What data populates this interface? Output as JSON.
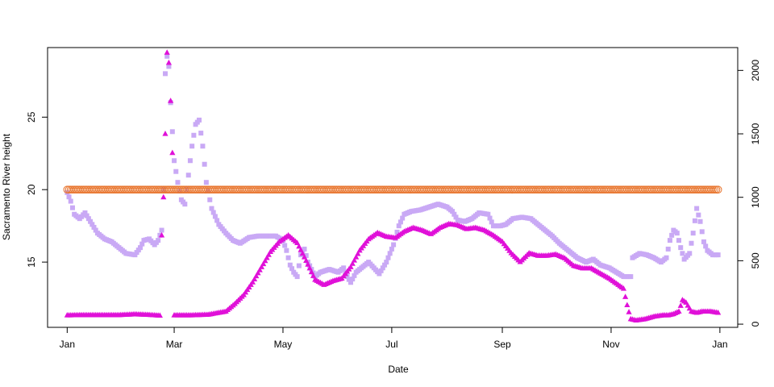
{
  "chart_data": {
    "type": "scatter",
    "xlabel": "Date",
    "ylabel": "Sacramento River height",
    "xlim": [
      "2016-01-01",
      "2016-12-31"
    ],
    "x_ticks": [
      {
        "date": "2016-01-01",
        "label": "Jan"
      },
      {
        "date": "2016-03-01",
        "label": "Mar"
      },
      {
        "date": "2016-05-01",
        "label": "May"
      },
      {
        "date": "2016-07-01",
        "label": "Jul"
      },
      {
        "date": "2016-09-01",
        "label": "Sep"
      },
      {
        "date": "2016-11-01",
        "label": "Nov"
      },
      {
        "date": "2017-01-01",
        "label": "Jan"
      }
    ],
    "ylim_left": [
      10.5,
      29.8
    ],
    "yticks_left": [
      15,
      20,
      25
    ],
    "ylim_right": [
      -25,
      2180
    ],
    "yticks_right": [
      0,
      500,
      1000,
      1500,
      2000
    ],
    "grid": false,
    "legend": "none",
    "series": [
      {
        "marker": "square",
        "color": "#c9a9f5",
        "axis": "left",
        "points": [
          [
            "2016-01-01",
            19.8
          ],
          [
            "2016-01-03",
            19.2
          ],
          [
            "2016-01-05",
            18.3
          ],
          [
            "2016-01-08",
            18.0
          ],
          [
            "2016-01-11",
            18.4
          ],
          [
            "2016-01-14",
            17.8
          ],
          [
            "2016-01-18",
            17.0
          ],
          [
            "2016-01-22",
            16.6
          ],
          [
            "2016-01-26",
            16.4
          ],
          [
            "2016-01-30",
            16.0
          ],
          [
            "2016-02-03",
            15.6
          ],
          [
            "2016-02-08",
            15.5
          ],
          [
            "2016-02-11",
            16.0
          ],
          [
            "2016-02-13",
            16.5
          ],
          [
            "2016-02-16",
            16.6
          ],
          [
            "2016-02-19",
            16.2
          ],
          [
            "2016-02-21",
            16.5
          ],
          [
            "2016-02-23",
            17.2
          ],
          [
            "2016-02-24",
            20.0
          ],
          [
            "2016-02-25",
            28.0
          ],
          [
            "2016-02-26",
            29.2
          ],
          [
            "2016-02-27",
            28.5
          ],
          [
            "2016-02-28",
            26.0
          ],
          [
            "2016-02-29",
            24.0
          ],
          [
            "2016-03-01",
            22.0
          ],
          [
            "2016-03-03",
            20.5
          ],
          [
            "2016-03-05",
            19.3
          ],
          [
            "2016-03-07",
            19.0
          ],
          [
            "2016-03-09",
            21.0
          ],
          [
            "2016-03-11",
            23.0
          ],
          [
            "2016-03-13",
            24.5
          ],
          [
            "2016-03-15",
            24.8
          ],
          [
            "2016-03-17",
            23.0
          ],
          [
            "2016-03-19",
            20.5
          ],
          [
            "2016-03-22",
            18.7
          ],
          [
            "2016-03-26",
            17.6
          ],
          [
            "2016-03-30",
            17.0
          ],
          [
            "2016-04-03",
            16.5
          ],
          [
            "2016-04-07",
            16.3
          ],
          [
            "2016-04-12",
            16.7
          ],
          [
            "2016-04-17",
            16.8
          ],
          [
            "2016-04-22",
            16.8
          ],
          [
            "2016-04-27",
            16.8
          ],
          [
            "2016-05-01",
            16.5
          ],
          [
            "2016-05-03",
            15.8
          ],
          [
            "2016-05-05",
            14.8
          ],
          [
            "2016-05-07",
            14.3
          ],
          [
            "2016-05-09",
            14.0
          ],
          [
            "2016-05-11",
            15.5
          ],
          [
            "2016-05-13",
            15.9
          ],
          [
            "2016-05-15",
            15.0
          ],
          [
            "2016-05-17",
            14.5
          ],
          [
            "2016-05-19",
            14.0
          ],
          [
            "2016-05-22",
            14.3
          ],
          [
            "2016-05-27",
            14.5
          ],
          [
            "2016-06-01",
            14.3
          ],
          [
            "2016-06-04",
            14.6
          ],
          [
            "2016-06-06",
            14.0
          ],
          [
            "2016-06-08",
            13.6
          ],
          [
            "2016-06-11",
            14.3
          ],
          [
            "2016-06-15",
            14.7
          ],
          [
            "2016-06-18",
            15.0
          ],
          [
            "2016-06-21",
            14.6
          ],
          [
            "2016-06-24",
            14.2
          ],
          [
            "2016-06-28",
            15.0
          ],
          [
            "2016-07-02",
            16.2
          ],
          [
            "2016-07-05",
            17.5
          ],
          [
            "2016-07-08",
            18.3
          ],
          [
            "2016-07-12",
            18.5
          ],
          [
            "2016-07-17",
            18.6
          ],
          [
            "2016-07-22",
            18.8
          ],
          [
            "2016-07-27",
            19.0
          ],
          [
            "2016-08-01",
            18.8
          ],
          [
            "2016-08-04",
            18.5
          ],
          [
            "2016-08-07",
            17.9
          ],
          [
            "2016-08-11",
            17.8
          ],
          [
            "2016-08-15",
            18.0
          ],
          [
            "2016-08-19",
            18.4
          ],
          [
            "2016-08-24",
            18.3
          ],
          [
            "2016-08-27",
            17.5
          ],
          [
            "2016-08-31",
            17.5
          ],
          [
            "2016-09-03",
            17.6
          ],
          [
            "2016-09-07",
            18.0
          ],
          [
            "2016-09-12",
            18.1
          ],
          [
            "2016-09-17",
            18.0
          ],
          [
            "2016-09-21",
            17.6
          ],
          [
            "2016-09-25",
            17.2
          ],
          [
            "2016-09-29",
            16.8
          ],
          [
            "2016-10-03",
            16.3
          ],
          [
            "2016-10-08",
            15.8
          ],
          [
            "2016-10-13",
            15.3
          ],
          [
            "2016-10-18",
            15.0
          ],
          [
            "2016-10-22",
            15.2
          ],
          [
            "2016-10-26",
            14.8
          ],
          [
            "2016-10-31",
            14.6
          ],
          [
            "2016-11-04",
            14.3
          ],
          [
            "2016-11-08",
            14.0
          ],
          [
            "2016-11-12",
            14.0
          ],
          [
            "2016-11-13",
            15.3
          ],
          [
            "2016-11-17",
            15.6
          ],
          [
            "2016-11-21",
            15.5
          ],
          [
            "2016-11-25",
            15.3
          ],
          [
            "2016-11-29",
            15.0
          ],
          [
            "2016-12-02",
            15.3
          ],
          [
            "2016-12-04",
            16.5
          ],
          [
            "2016-12-06",
            17.2
          ],
          [
            "2016-12-08",
            17.0
          ],
          [
            "2016-12-10",
            16.0
          ],
          [
            "2016-12-12",
            15.2
          ],
          [
            "2016-12-15",
            15.6
          ],
          [
            "2016-12-17",
            17.0
          ],
          [
            "2016-12-19",
            18.7
          ],
          [
            "2016-12-21",
            17.8
          ],
          [
            "2016-12-23",
            16.4
          ],
          [
            "2016-12-25",
            15.8
          ],
          [
            "2016-12-28",
            15.5
          ],
          [
            "2016-12-31",
            15.5
          ]
        ]
      },
      {
        "marker": "triangle",
        "color": "#e010d8",
        "axis": "right",
        "points": [
          [
            "2016-01-01",
            70
          ],
          [
            "2016-01-10",
            72
          ],
          [
            "2016-01-20",
            72
          ],
          [
            "2016-01-30",
            72
          ],
          [
            "2016-02-08",
            78
          ],
          [
            "2016-02-15",
            74
          ],
          [
            "2016-02-22",
            68
          ],
          [
            "2016-02-23",
            700
          ],
          [
            "2016-02-24",
            1000
          ],
          [
            "2016-02-25",
            1500
          ],
          [
            "2016-02-26",
            2140
          ],
          [
            "2016-02-27",
            2060
          ],
          [
            "2016-02-28",
            1760
          ],
          [
            "2016-02-29",
            1350
          ],
          [
            "2016-03-01",
            70
          ],
          [
            "2016-03-10",
            70
          ],
          [
            "2016-03-20",
            75
          ],
          [
            "2016-03-30",
            100
          ],
          [
            "2016-04-04",
            160
          ],
          [
            "2016-04-09",
            230
          ],
          [
            "2016-04-14",
            330
          ],
          [
            "2016-04-19",
            450
          ],
          [
            "2016-04-24",
            570
          ],
          [
            "2016-04-29",
            650
          ],
          [
            "2016-05-04",
            700
          ],
          [
            "2016-05-09",
            640
          ],
          [
            "2016-05-14",
            500
          ],
          [
            "2016-05-19",
            350
          ],
          [
            "2016-05-24",
            310
          ],
          [
            "2016-05-29",
            340
          ],
          [
            "2016-06-03",
            360
          ],
          [
            "2016-06-08",
            450
          ],
          [
            "2016-06-13",
            580
          ],
          [
            "2016-06-18",
            670
          ],
          [
            "2016-06-23",
            720
          ],
          [
            "2016-06-28",
            690
          ],
          [
            "2016-07-03",
            680
          ],
          [
            "2016-07-08",
            730
          ],
          [
            "2016-07-13",
            760
          ],
          [
            "2016-07-18",
            740
          ],
          [
            "2016-07-23",
            710
          ],
          [
            "2016-07-28",
            760
          ],
          [
            "2016-08-02",
            790
          ],
          [
            "2016-08-07",
            780
          ],
          [
            "2016-08-12",
            750
          ],
          [
            "2016-08-17",
            760
          ],
          [
            "2016-08-22",
            740
          ],
          [
            "2016-08-27",
            700
          ],
          [
            "2016-09-01",
            650
          ],
          [
            "2016-09-06",
            560
          ],
          [
            "2016-09-11",
            490
          ],
          [
            "2016-09-16",
            560
          ],
          [
            "2016-09-21",
            540
          ],
          [
            "2016-09-26",
            540
          ],
          [
            "2016-10-01",
            550
          ],
          [
            "2016-10-06",
            520
          ],
          [
            "2016-10-11",
            460
          ],
          [
            "2016-10-16",
            440
          ],
          [
            "2016-10-21",
            440
          ],
          [
            "2016-10-26",
            400
          ],
          [
            "2016-10-31",
            360
          ],
          [
            "2016-11-05",
            310
          ],
          [
            "2016-11-08",
            280
          ],
          [
            "2016-11-10",
            150
          ],
          [
            "2016-11-12",
            40
          ],
          [
            "2016-11-15",
            30
          ],
          [
            "2016-11-20",
            40
          ],
          [
            "2016-11-25",
            60
          ],
          [
            "2016-11-30",
            70
          ],
          [
            "2016-12-03",
            70
          ],
          [
            "2016-12-06",
            80
          ],
          [
            "2016-12-09",
            100
          ],
          [
            "2016-12-11",
            190
          ],
          [
            "2016-12-13",
            170
          ],
          [
            "2016-12-16",
            100
          ],
          [
            "2016-12-19",
            90
          ],
          [
            "2016-12-22",
            100
          ],
          [
            "2016-12-27",
            100
          ],
          [
            "2016-12-31",
            90
          ]
        ]
      },
      {
        "marker": "circle-open",
        "color": "#e8742c",
        "axis": "left",
        "constant": 20.0,
        "from": "2016-01-01",
        "to": "2016-12-31"
      }
    ]
  }
}
